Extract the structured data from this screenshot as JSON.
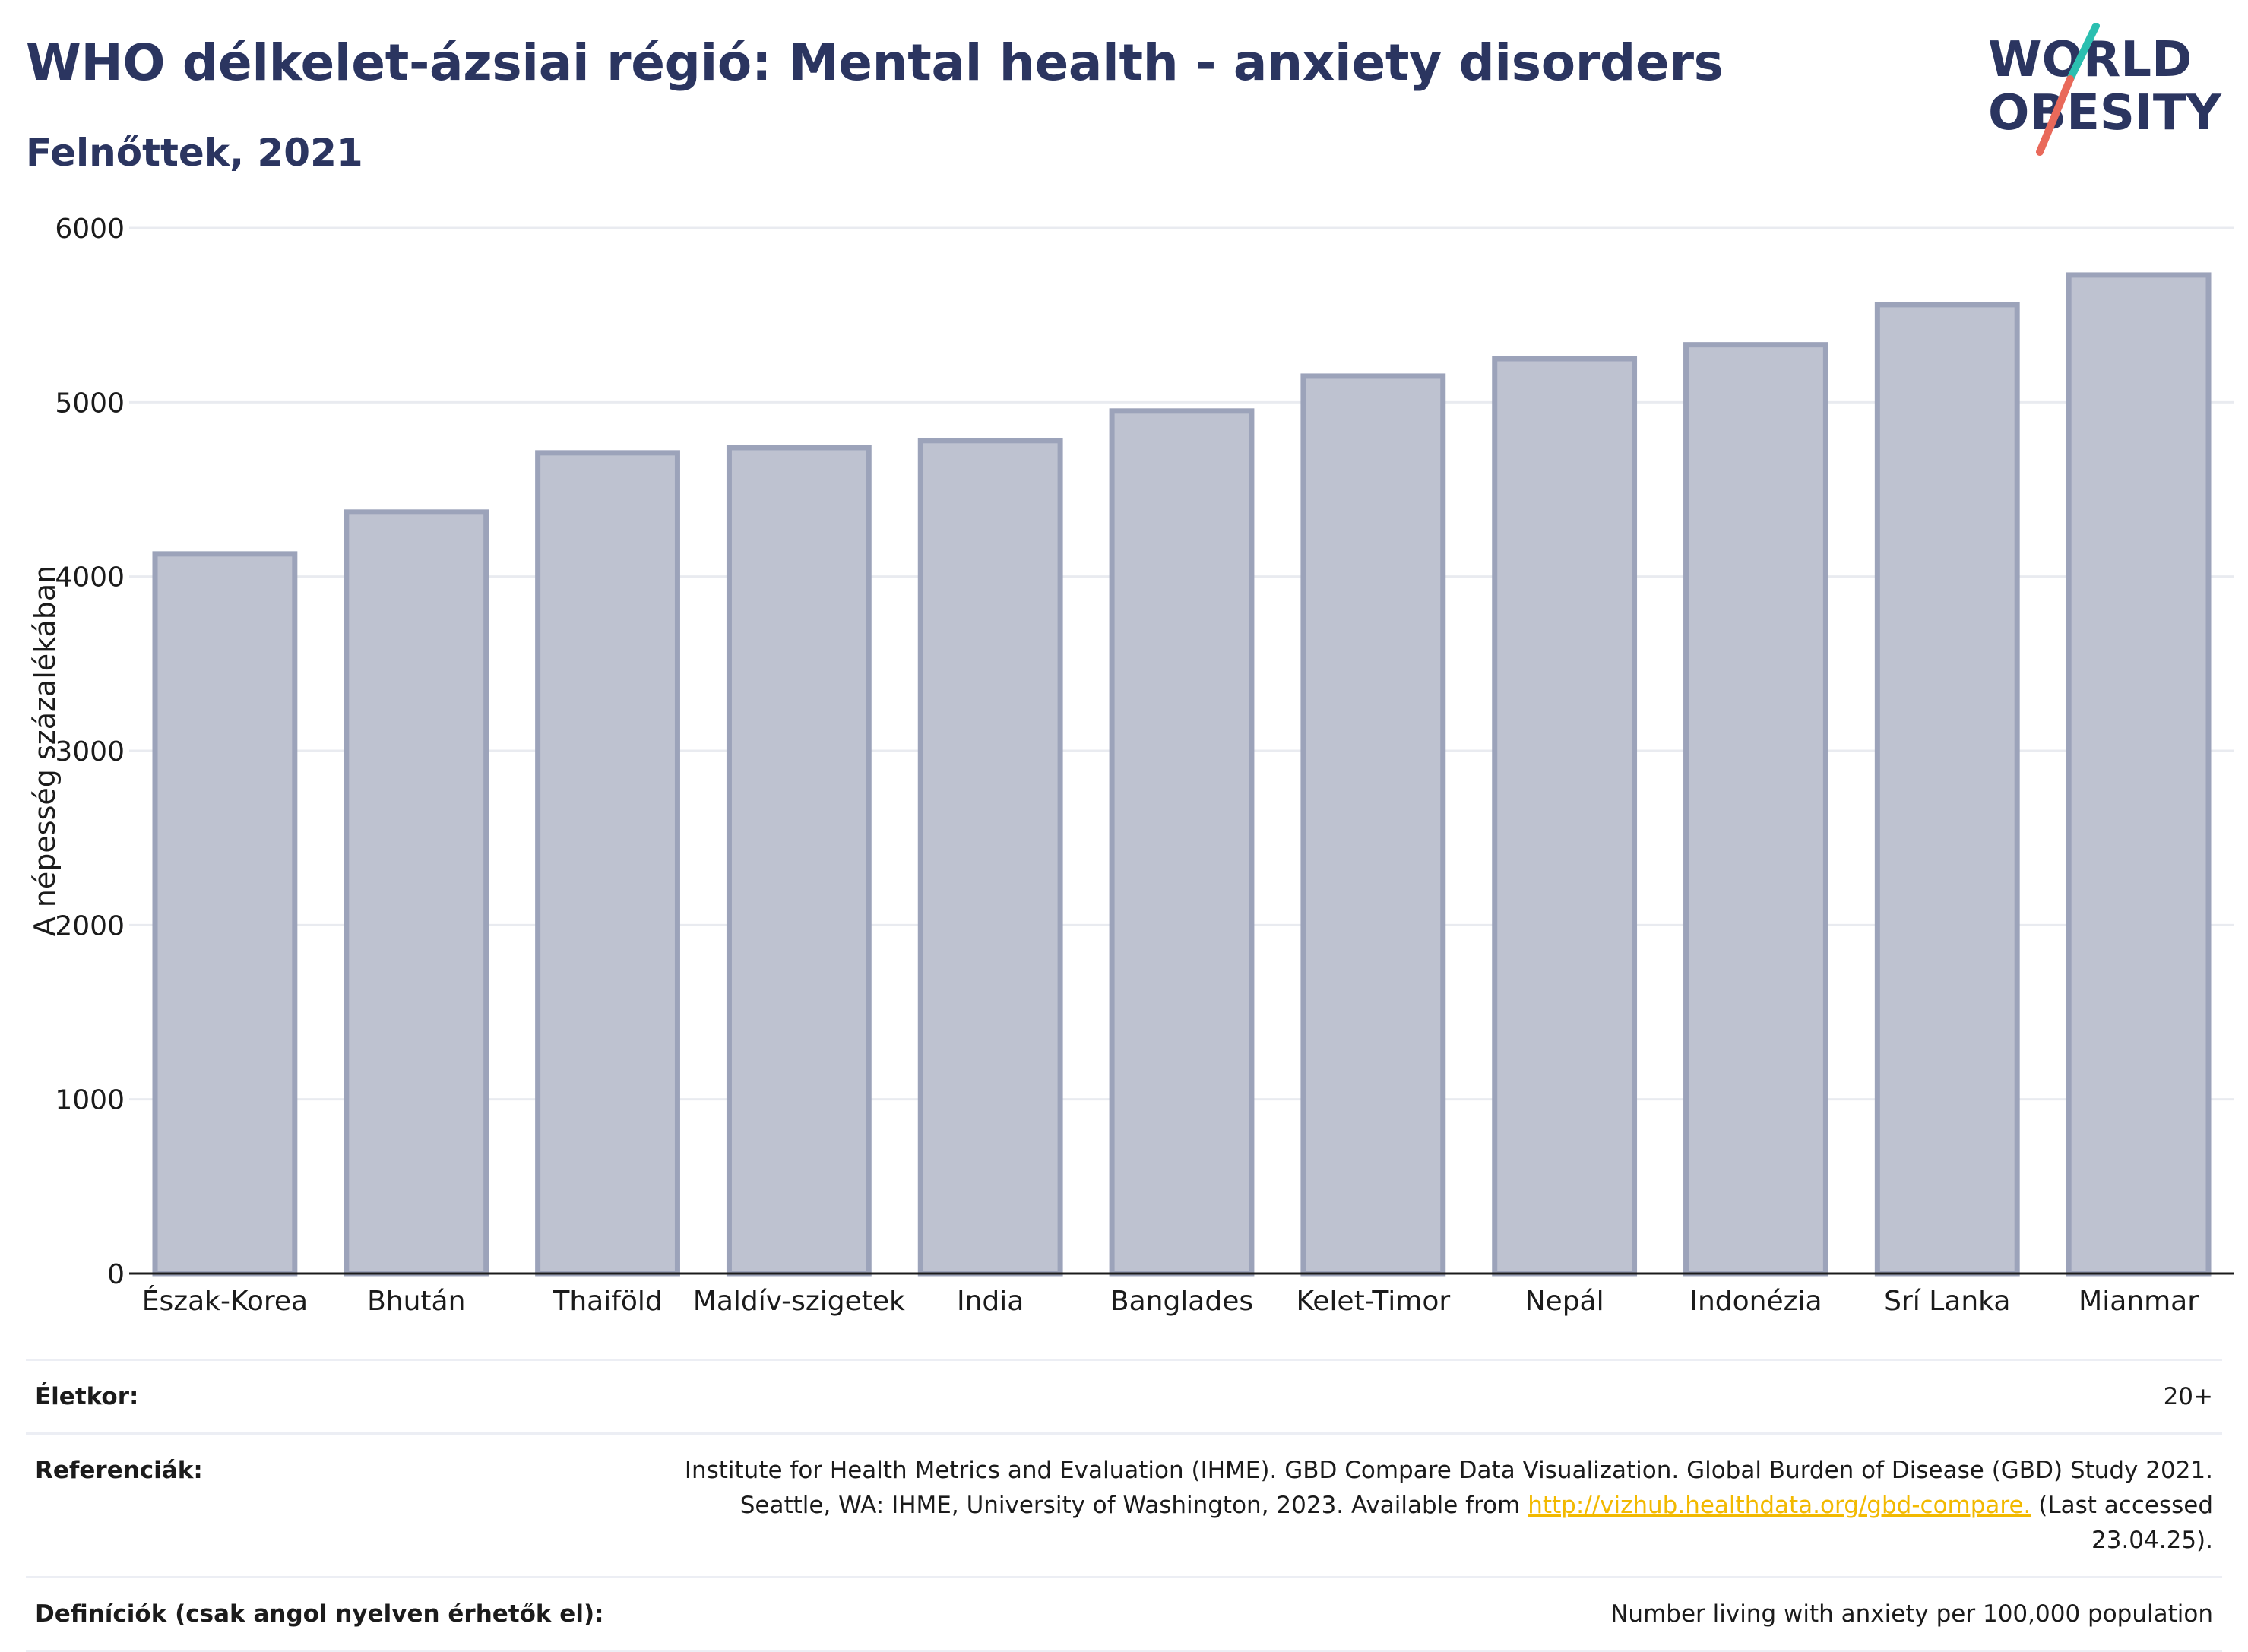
{
  "header": {
    "title": "WHO délkelet-ázsiai régió: Mental health - anxiety disorders",
    "subtitle": "Felnőttek, 2021"
  },
  "logo": {
    "line1": "WORLD",
    "line2": "OBESITY",
    "colors": {
      "text": "#2b3560",
      "slash_top": "#2bbfb0",
      "slash_bottom": "#e9695a"
    }
  },
  "chart_data": {
    "type": "bar",
    "categories": [
      "Észak-Korea",
      "Bhután",
      "Thaiföld",
      "Maldív-szigetek",
      "India",
      "Banglades",
      "Kelet-Timor",
      "Nepál",
      "Indonézia",
      "Srí Lanka",
      "Mianmar"
    ],
    "values": [
      4130,
      4370,
      4710,
      4740,
      4780,
      4950,
      5150,
      5250,
      5330,
      5560,
      5730
    ],
    "title": "WHO délkelet-ázsiai régió: Mental health - anxiety disorders",
    "subtitle": "Felnőttek, 2021",
    "xlabel": "",
    "ylabel": "A népesség százalékában",
    "ylim": [
      0,
      6000
    ],
    "yticks": [
      0,
      1000,
      2000,
      3000,
      4000,
      5000,
      6000
    ],
    "grid": true,
    "legend": "none",
    "colors": {
      "bar_fill": "#bec2d0",
      "bar_stroke": "#9ca3ba",
      "grid": "#e9ebf0",
      "axis": "#1b1b1b"
    }
  },
  "info": {
    "age_label": "Életkor:",
    "age_value": "20+",
    "ref_label": "Referenciák:",
    "ref_text_1": "Institute for Health Metrics and Evaluation (IHME). GBD Compare Data Visualization. Global Burden of Disease (GBD) Study 2021. Seattle, WA: IHME, University of Washington, 2023. Available from ",
    "ref_link": "http://vizhub.healthdata.org/gbd-compare.",
    "ref_text_2": " (Last accessed 23.04.25).",
    "def_label": "Definíciók (csak angol nyelven érhetők el):",
    "def_value": "Number living with anxiety per 100,000 population"
  }
}
